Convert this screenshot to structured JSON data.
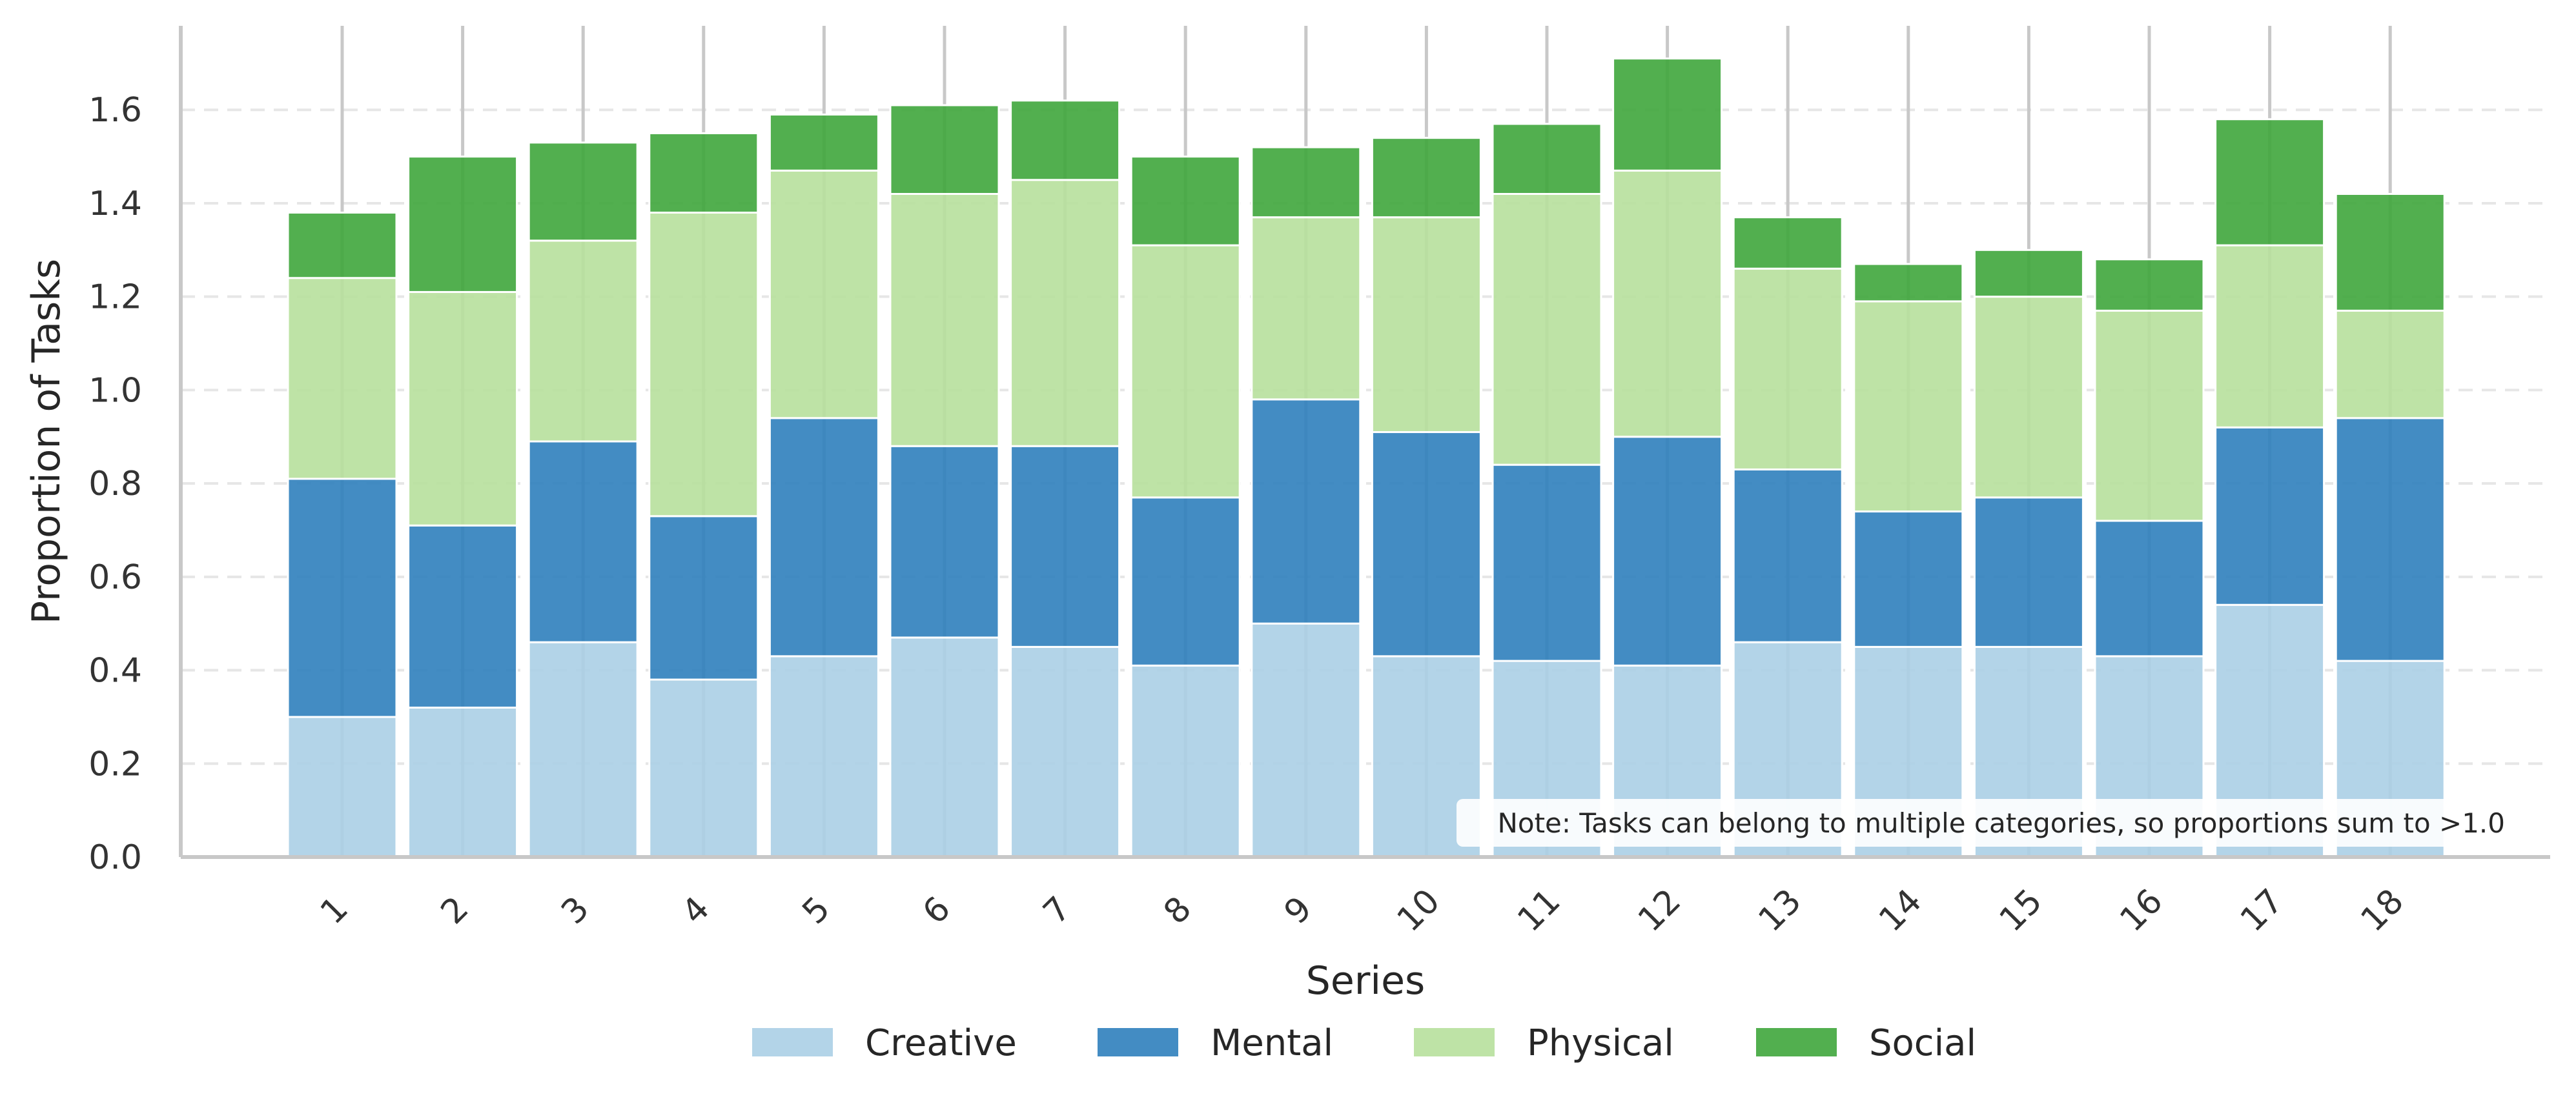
{
  "chart_data": {
    "type": "bar",
    "stacked": true,
    "title": "",
    "xlabel": "Series",
    "ylabel": "Proportion of Tasks",
    "ylim": [
      0,
      1.78
    ],
    "yticks": [
      "0.0",
      "0.2",
      "0.4",
      "0.6",
      "0.8",
      "1.0",
      "1.2",
      "1.4",
      "1.6"
    ],
    "categories": [
      "1",
      "2",
      "3",
      "4",
      "5",
      "6",
      "7",
      "8",
      "9",
      "10",
      "11",
      "12",
      "13",
      "14",
      "15",
      "16",
      "17",
      "18"
    ],
    "series": [
      {
        "name": "Creative",
        "color": "#abcfe5",
        "values": [
          0.3,
          0.32,
          0.46,
          0.38,
          0.43,
          0.47,
          0.45,
          0.41,
          0.5,
          0.43,
          0.42,
          0.41,
          0.46,
          0.45,
          0.45,
          0.43,
          0.54,
          0.42
        ]
      },
      {
        "name": "Mental",
        "color": "#2f7fbc",
        "values": [
          0.51,
          0.39,
          0.43,
          0.35,
          0.51,
          0.41,
          0.43,
          0.36,
          0.48,
          0.48,
          0.42,
          0.49,
          0.37,
          0.29,
          0.32,
          0.29,
          0.38,
          0.52
        ]
      },
      {
        "name": "Physical",
        "color": "#b7e09c",
        "values": [
          0.43,
          0.5,
          0.43,
          0.65,
          0.53,
          0.54,
          0.57,
          0.54,
          0.39,
          0.46,
          0.58,
          0.57,
          0.43,
          0.45,
          0.43,
          0.45,
          0.39,
          0.23
        ]
      },
      {
        "name": "Social",
        "color": "#3fa63c",
        "values": [
          0.14,
          0.29,
          0.21,
          0.17,
          0.12,
          0.19,
          0.17,
          0.19,
          0.15,
          0.17,
          0.15,
          0.24,
          0.11,
          0.08,
          0.1,
          0.11,
          0.27,
          0.25
        ]
      }
    ],
    "grid": {
      "y": true,
      "style": "dashed"
    },
    "legend": {
      "placement": "bottom-center",
      "columns": 4
    },
    "annotation": "Note: Tasks can belong to multiple categories, so proportions sum to >1.0"
  }
}
